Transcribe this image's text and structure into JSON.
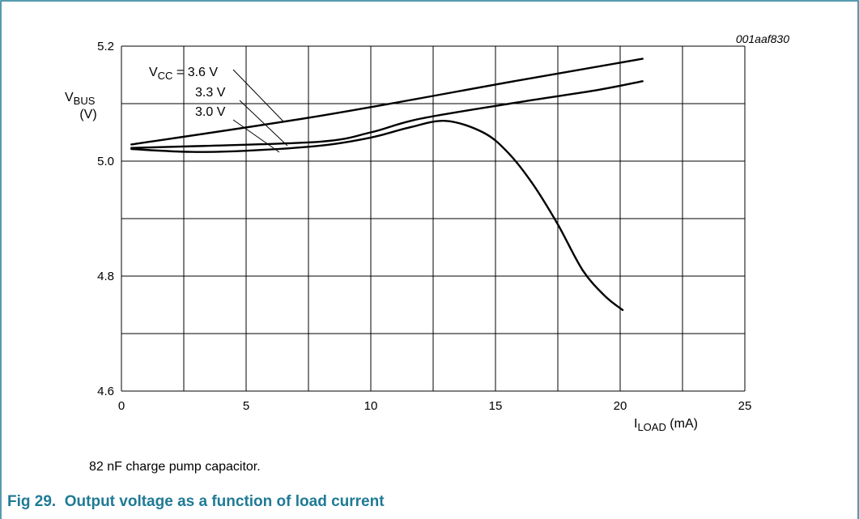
{
  "figure_code": "001aaf830",
  "note": "82 nF charge pump capacitor.",
  "caption": {
    "number": "Fig 29.",
    "text": "Output voltage as a function of load current"
  },
  "colors": {
    "frame": "#1f7a95",
    "caption": "#1f7a95",
    "grid": "#000000",
    "curve": "#000000"
  },
  "chart_data": {
    "type": "line",
    "grid": true,
    "xlim": [
      0,
      25
    ],
    "ylim": [
      4.6,
      5.2
    ],
    "x_ticks": [
      "0",
      "5",
      "10",
      "15",
      "20",
      "25"
    ],
    "y_ticks": [
      "4.6",
      "4.8",
      "5.0",
      "5.2"
    ],
    "x_gridlines": [
      0,
      2.5,
      5,
      7.5,
      10,
      12.5,
      15,
      17.5,
      20,
      22.5,
      25
    ],
    "y_gridlines": [
      4.6,
      4.7,
      4.8,
      4.9,
      5.0,
      5.1,
      5.2
    ],
    "ylabel": {
      "main": "V",
      "sub": "BUS",
      "unit": "(V)"
    },
    "xlabel": {
      "main": "I",
      "sub": "LOAD",
      "unit": " (mA)"
    },
    "legend": {
      "first": {
        "main": "V",
        "sub": "CC",
        "rest": " = 3.6 V"
      },
      "second": "3.3 V",
      "third": "3.0 V"
    },
    "series": [
      {
        "name": "VCC = 3.6 V",
        "x": [
          0.4,
          8,
          16,
          20.9
        ],
        "y": [
          5.029,
          5.079,
          5.141,
          5.178
        ]
      },
      {
        "name": "3.3 V",
        "x": [
          0.4,
          3,
          8,
          10,
          12,
          16,
          19,
          20.9
        ],
        "y": [
          5.023,
          5.026,
          5.034,
          5.05,
          5.074,
          5.103,
          5.123,
          5.139
        ]
      },
      {
        "name": "3.0 V",
        "x": [
          0.4,
          2.8,
          5,
          8,
          10,
          11.5,
          13,
          14.5,
          15.5,
          16.5,
          17.5,
          18.5,
          19.4,
          20.1
        ],
        "y": [
          5.021,
          5.016,
          5.018,
          5.027,
          5.041,
          5.058,
          5.07,
          5.05,
          5.015,
          4.96,
          4.89,
          4.81,
          4.765,
          4.741
        ]
      }
    ]
  }
}
